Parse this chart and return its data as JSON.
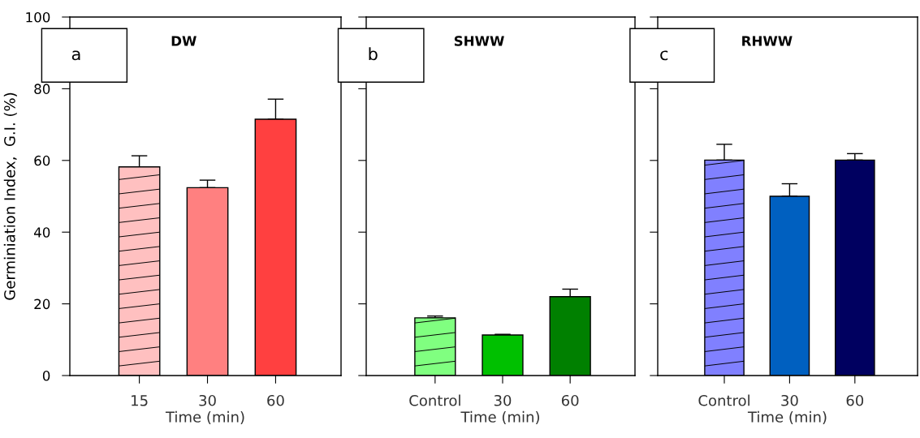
{
  "chart_data": [
    {
      "type": "bar",
      "title": "DW",
      "xlabel": "Time (min)",
      "ylabel": "Germiniation Index,  G.I. (%)",
      "annotations": [
        "a"
      ],
      "categories": [
        "15",
        "30",
        "60"
      ],
      "values": [
        58.2,
        52.4,
        71.5
      ],
      "errors": [
        3.1,
        2.1,
        5.6
      ],
      "colors": [
        "#ffc0c0",
        "#ff8080",
        "#ff4040"
      ],
      "ylim": [
        0,
        100
      ],
      "yticks": [
        0,
        20,
        40,
        60,
        80,
        100
      ],
      "grid": false
    },
    {
      "type": "bar",
      "title": "SHWW",
      "xlabel": "Time (min)",
      "annotations": [
        "b"
      ],
      "categories": [
        "Control",
        "30",
        "60"
      ],
      "values": [
        16.1,
        11.3,
        22.0
      ],
      "errors": [
        0.5,
        0.2,
        2.1
      ],
      "colors": [
        "#80ff80",
        "#00c000",
        "#008000"
      ],
      "ylim": [
        0,
        100
      ],
      "yticks": [
        0,
        20,
        40,
        60,
        80,
        100
      ],
      "tick_labels": "x",
      "grid": false
    },
    {
      "type": "bar",
      "title": "RHWW",
      "xlabel": "Time (min)",
      "annotations": [
        "c"
      ],
      "categories": [
        "Control",
        "30",
        "60"
      ],
      "values": [
        60.1,
        50.0,
        60.1
      ],
      "errors": [
        4.4,
        3.5,
        1.8
      ],
      "colors": [
        "#8080ff",
        "#0060c0",
        "#000060"
      ],
      "ylim": [
        0,
        100
      ],
      "yticks": [
        0,
        20,
        40,
        60,
        80,
        100
      ],
      "tick_labels": "x",
      "grid": false
    }
  ]
}
